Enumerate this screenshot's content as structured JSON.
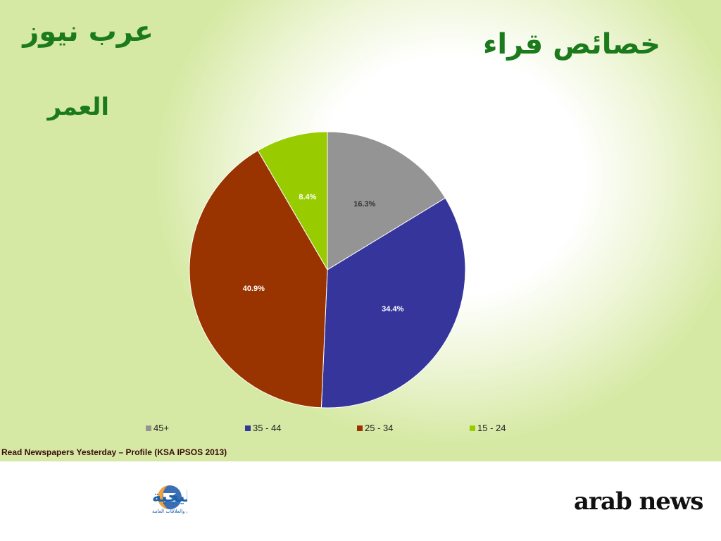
{
  "header": {
    "brand": "عرب نيوز",
    "subtitle": "العمر",
    "title": "خصائص قراء"
  },
  "chart_data": {
    "type": "pie",
    "categories": [
      "45+",
      "35 - 44",
      "25 - 34",
      "15 - 24"
    ],
    "values": [
      16.3,
      34.4,
      40.9,
      8.4
    ],
    "labels": [
      "16.3%",
      "34.4%",
      "40.9%",
      "8.4%"
    ],
    "colors": [
      "#949494",
      "#35359c",
      "#993300",
      "#99cc00"
    ],
    "label_colors": [
      "#333333",
      "#ffffff",
      "#ffffff",
      "#ffffff"
    ],
    "legend_position": "bottom"
  },
  "footer": {
    "source": "Read  Newspapers Yesterday – Profile (KSA IPSOS 2013)",
    "logo_left": {
      "name": "الخليجية",
      "tagline": "للإعلان والعلاقات العامة"
    },
    "logo_right": "arab news"
  }
}
